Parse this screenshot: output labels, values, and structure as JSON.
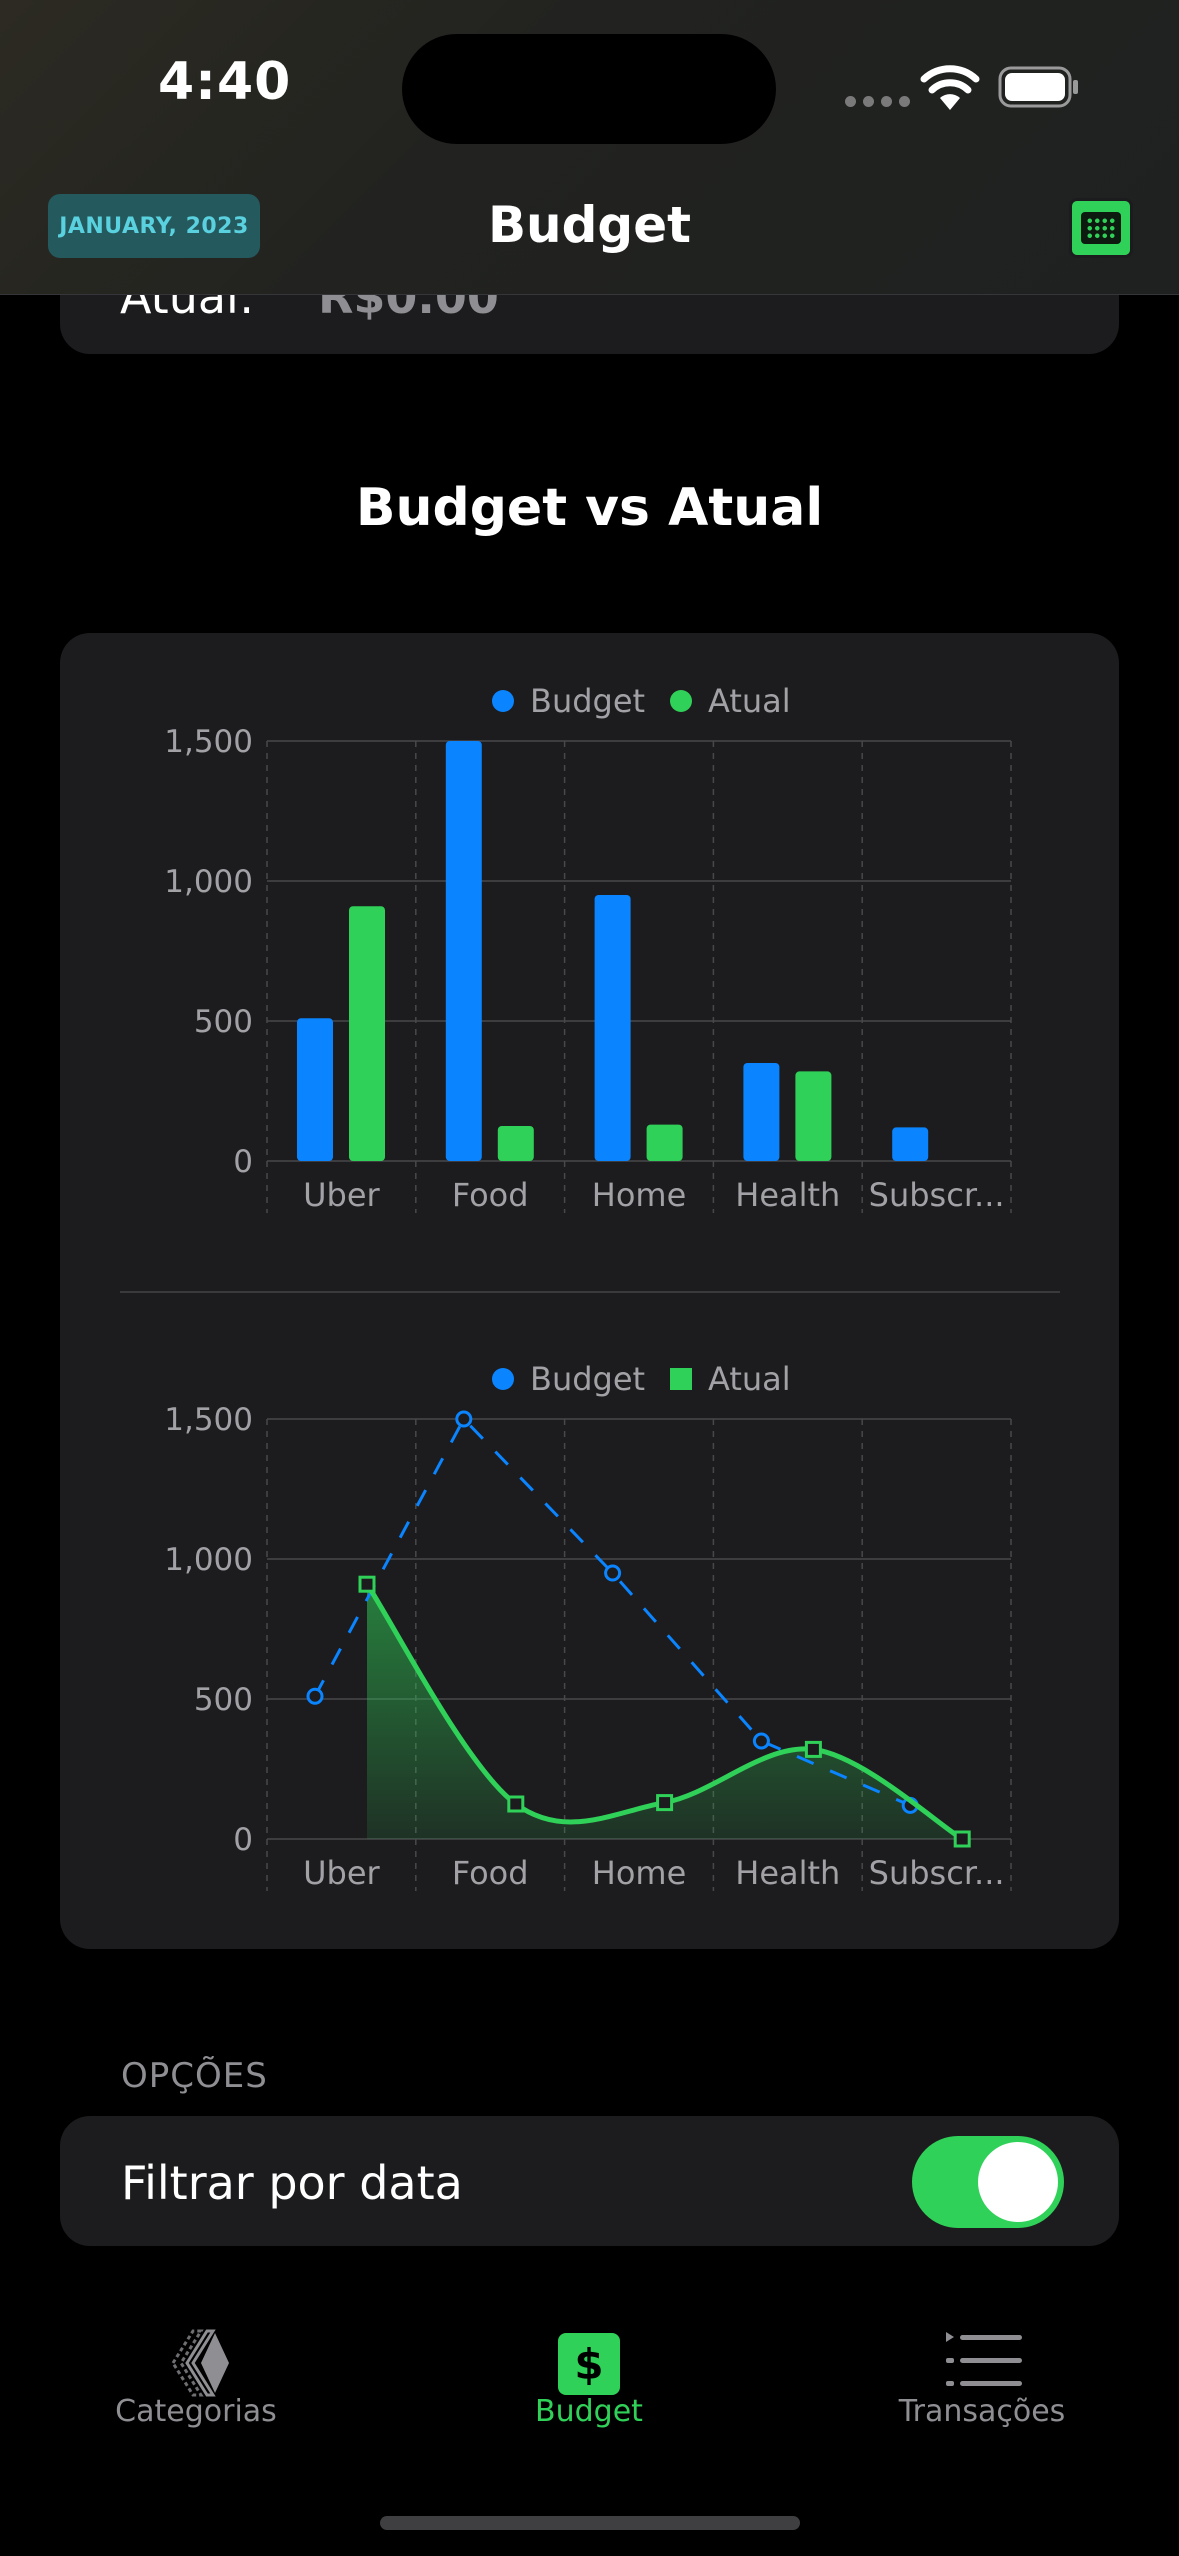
{
  "status_bar": {
    "time": "4:40"
  },
  "nav": {
    "date_chip": "JANUARY, 2023",
    "title": "Budget"
  },
  "top_card": {
    "label": "Atual:",
    "value": "R$0.00"
  },
  "section_title": "Budget vs Atual",
  "colors": {
    "budget": "#0a84ff",
    "atual": "#30d158",
    "card": "#1c1c1e",
    "accent": "#30d158"
  },
  "chart_data": [
    {
      "type": "bar",
      "categories": [
        "Uber",
        "Food",
        "Home",
        "Health",
        "Subscr..."
      ],
      "series": [
        {
          "name": "Budget",
          "values": [
            510,
            1500,
            950,
            350,
            120
          ]
        },
        {
          "name": "Atual",
          "values": [
            910,
            125,
            130,
            320,
            0
          ]
        }
      ],
      "yticks": [
        "0",
        "500",
        "1,000",
        "1,500"
      ],
      "ylim": [
        0,
        1500
      ],
      "grid": true,
      "legend": "top-center"
    },
    {
      "type": "line",
      "categories": [
        "Uber",
        "Food",
        "Home",
        "Health",
        "Subscr..."
      ],
      "series": [
        {
          "name": "Budget",
          "values": [
            510,
            1500,
            950,
            350,
            120
          ]
        },
        {
          "name": "Atual",
          "values": [
            910,
            125,
            130,
            320,
            0
          ]
        }
      ],
      "yticks": [
        "0",
        "500",
        "1,000",
        "1,500"
      ],
      "ylim": [
        0,
        1500
      ],
      "grid": true,
      "legend": "top-center"
    }
  ],
  "options": {
    "header": "OPÇÕES",
    "filter_label": "Filtrar por data",
    "filter_enabled": true
  },
  "tabs": [
    {
      "label": "Categorias",
      "icon": "categories-icon"
    },
    {
      "label": "Budget",
      "icon": "dollar-icon",
      "active": true
    },
    {
      "label": "Transações",
      "icon": "list-icon"
    }
  ]
}
